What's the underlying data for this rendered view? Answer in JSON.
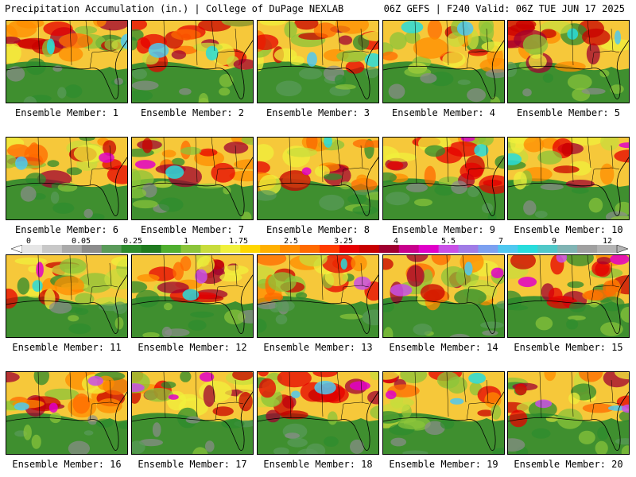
{
  "header": {
    "left": "Precipitation Accumulation (in.) | College of DuPage NEXLAB",
    "right": "06Z GEFS | F240 Valid: 06Z TUE JUN 17 2025"
  },
  "colorbar": {
    "ticks": [
      "0",
      "0.05",
      "0.25",
      "1",
      "1.75",
      "2.5",
      "3.25",
      "4",
      "5.5",
      "7",
      "9",
      "12"
    ],
    "colors": [
      "#e6e6e6",
      "#c8c8c8",
      "#aaaaaa",
      "#8c8c8c",
      "#5a9a5a",
      "#2e8b2e",
      "#1f7a1f",
      "#4fae2f",
      "#8bc43a",
      "#c8dc3c",
      "#f0f03c",
      "#ffd700",
      "#ffb000",
      "#ff8c00",
      "#ff6a00",
      "#ff3c00",
      "#e60000",
      "#c80000",
      "#a00030",
      "#c8008c",
      "#e000c8",
      "#c850e6",
      "#a07ce6",
      "#7ca0f0",
      "#50c8f0",
      "#28dcdc",
      "#50c8c8",
      "#80b4b4",
      "#a0a0a0",
      "#b4b4b4"
    ]
  },
  "panels": [
    {
      "label": "Ensemble Member: 1"
    },
    {
      "label": "Ensemble Member: 2"
    },
    {
      "label": "Ensemble Member: 3"
    },
    {
      "label": "Ensemble Member: 4"
    },
    {
      "label": "Ensemble Member: 5"
    },
    {
      "label": "Ensemble Member: 6"
    },
    {
      "label": "Ensemble Member: 7"
    },
    {
      "label": "Ensemble Member: 8"
    },
    {
      "label": "Ensemble Member: 9"
    },
    {
      "label": "Ensemble Member: 10"
    },
    {
      "label": "Ensemble Member: 11"
    },
    {
      "label": "Ensemble Member: 12"
    },
    {
      "label": "Ensemble Member: 13"
    },
    {
      "label": "Ensemble Member: 14"
    },
    {
      "label": "Ensemble Member: 15"
    },
    {
      "label": "Ensemble Member: 16"
    },
    {
      "label": "Ensemble Member: 17"
    },
    {
      "label": "Ensemble Member: 18"
    },
    {
      "label": "Ensemble Member: 19"
    },
    {
      "label": "Ensemble Member: 20"
    }
  ]
}
